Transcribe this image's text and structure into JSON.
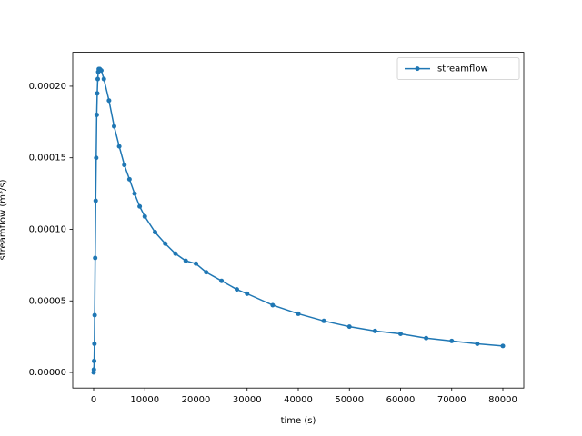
{
  "chart_data": {
    "type": "line",
    "xlabel": "time (s)",
    "ylabel": "streamflow (m³/s)",
    "x": [
      0,
      50,
      100,
      150,
      200,
      300,
      400,
      500,
      600,
      700,
      800,
      900,
      1000,
      1200,
      1500,
      2000,
      3000,
      4000,
      5000,
      6000,
      7000,
      8000,
      9000,
      10000,
      12000,
      14000,
      16000,
      18000,
      20000,
      22000,
      25000,
      28000,
      30000,
      35000,
      40000,
      45000,
      50000,
      55000,
      60000,
      65000,
      70000,
      75000,
      80000
    ],
    "series": [
      {
        "name": "streamflow",
        "color": "#1f77b4",
        "values": [
          0,
          2e-06,
          8e-06,
          2e-05,
          4e-05,
          8e-05,
          0.00012,
          0.00015,
          0.00018,
          0.000195,
          0.000205,
          0.00021,
          0.000212,
          0.000212,
          0.000211,
          0.000205,
          0.00019,
          0.000172,
          0.000158,
          0.000145,
          0.000135,
          0.000125,
          0.000116,
          0.000109,
          9.8e-05,
          9e-05,
          8.3e-05,
          7.8e-05,
          7.6e-05,
          7e-05,
          6.4e-05,
          5.8e-05,
          5.5e-05,
          4.7e-05,
          4.1e-05,
          3.6e-05,
          3.2e-05,
          2.9e-05,
          2.7e-05,
          2.4e-05,
          2.2e-05,
          2e-05,
          1.85e-05
        ]
      }
    ],
    "xlim": [
      -4089,
      84089
    ],
    "ylim": [
      -1.09e-05,
      0.0002237
    ],
    "xticks": [
      0,
      10000,
      20000,
      30000,
      40000,
      50000,
      60000,
      70000,
      80000
    ],
    "yticks": [
      {
        "value": 0,
        "label": "0.00000"
      },
      {
        "value": 5e-05,
        "label": "0.00005"
      },
      {
        "value": 0.0001,
        "label": "0.00010"
      },
      {
        "value": 0.00015,
        "label": "0.00015"
      },
      {
        "value": 0.0002,
        "label": "0.00020"
      }
    ],
    "legend": "upper right"
  }
}
